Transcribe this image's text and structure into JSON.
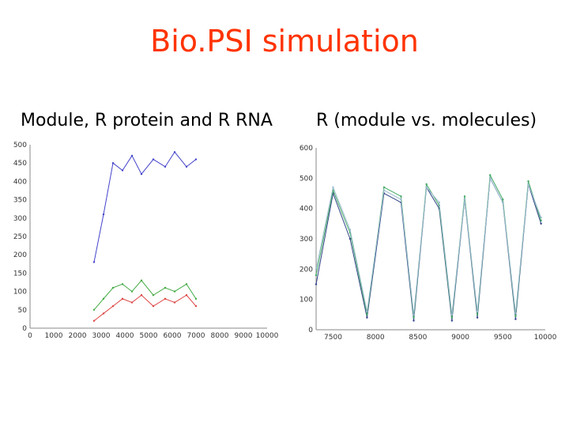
{
  "slide": {
    "title": "Bio.PSI simulation",
    "left_caption": "Module, R protein and R RNA",
    "right_caption": "R (module vs. molecules)",
    "title_color": "#ff3300"
  },
  "chart_data": [
    {
      "type": "line",
      "title": "",
      "xlim": [
        0,
        10000
      ],
      "ylim": [
        0,
        500
      ],
      "xticks": [
        0,
        1000,
        2000,
        3000,
        4000,
        5000,
        6000,
        7000,
        8000,
        9000,
        10000
      ],
      "yticks": [
        0,
        50,
        100,
        150,
        200,
        250,
        300,
        350,
        400,
        450,
        500
      ],
      "series": [
        {
          "color": "#4444cc",
          "x": [
            2700,
            3100,
            3500,
            3900,
            4300,
            4700,
            5200,
            5700,
            6100,
            6600,
            7000
          ],
          "values": [
            180,
            310,
            450,
            430,
            470,
            420,
            460,
            440,
            480,
            440,
            460
          ]
        },
        {
          "color": "#44aa44",
          "x": [
            2700,
            3100,
            3500,
            3900,
            4300,
            4700,
            5200,
            5700,
            6100,
            6600,
            7000
          ],
          "values": [
            50,
            80,
            110,
            120,
            100,
            130,
            90,
            110,
            100,
            120,
            80
          ]
        },
        {
          "color": "#dd4444",
          "x": [
            2700,
            3100,
            3500,
            3900,
            4300,
            4700,
            5200,
            5700,
            6100,
            6600,
            7000
          ],
          "values": [
            20,
            40,
            60,
            80,
            70,
            90,
            60,
            80,
            70,
            90,
            60
          ]
        }
      ]
    },
    {
      "type": "line",
      "title": "",
      "xlim": [
        7300,
        10000
      ],
      "ylim": [
        0,
        600
      ],
      "xticks": [
        7500,
        8000,
        8500,
        9000,
        9500,
        10000
      ],
      "yticks": [
        0,
        100,
        200,
        300,
        400,
        500,
        600
      ],
      "series": [
        {
          "color": "#334488",
          "x": [
            7300,
            7500,
            7700,
            7900,
            8100,
            8300,
            8450,
            8600,
            8750,
            8900,
            9050,
            9200,
            9350,
            9500,
            9650,
            9800,
            9950
          ],
          "values": [
            150,
            450,
            300,
            40,
            450,
            420,
            30,
            470,
            400,
            30,
            430,
            40,
            500,
            420,
            35,
            480,
            350
          ]
        },
        {
          "color": "#44aa66",
          "x": [
            7300,
            7500,
            7700,
            7900,
            8100,
            8300,
            8450,
            8600,
            8750,
            8900,
            9050,
            9200,
            9350,
            9500,
            9650,
            9800,
            9950
          ],
          "values": [
            180,
            460,
            320,
            50,
            470,
            440,
            40,
            480,
            410,
            40,
            440,
            50,
            510,
            430,
            45,
            490,
            360
          ]
        },
        {
          "color": "#99bbcc",
          "x": [
            7300,
            7500,
            7700,
            7900,
            8100,
            8300,
            8450,
            8600,
            8750,
            8900,
            9050,
            9200,
            9350,
            9500,
            9650,
            9800,
            9950
          ],
          "values": [
            200,
            470,
            330,
            60,
            460,
            430,
            50,
            470,
            420,
            50,
            430,
            60,
            500,
            420,
            55,
            480,
            370
          ]
        }
      ]
    }
  ]
}
